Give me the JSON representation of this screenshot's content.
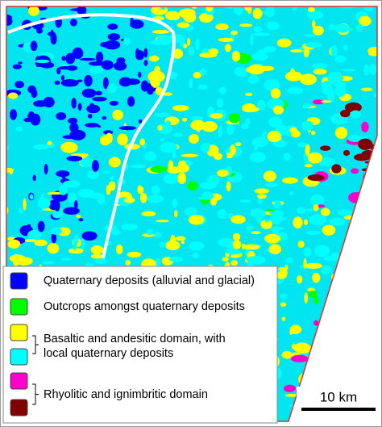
{
  "legend": {
    "entries": [
      {
        "lines": [
          "Quaternary deposits (alluvial and glacial)"
        ],
        "colors": [
          "#0000ff"
        ]
      },
      {
        "lines": [
          "Outcrops amongst quaternary deposits"
        ],
        "colors": [
          "#00ff00"
        ]
      },
      {
        "lines": [
          "Basaltic and andesitic domain, with",
          "local quaternary deposits"
        ],
        "colors": [
          "#ffff00",
          "#00ffff"
        ]
      },
      {
        "lines": [
          "Rhyolitic and ignimbritic domain"
        ],
        "colors": [
          "#ff00cc",
          "#800000"
        ]
      }
    ]
  },
  "scale_bar": {
    "label": "10 km"
  }
}
